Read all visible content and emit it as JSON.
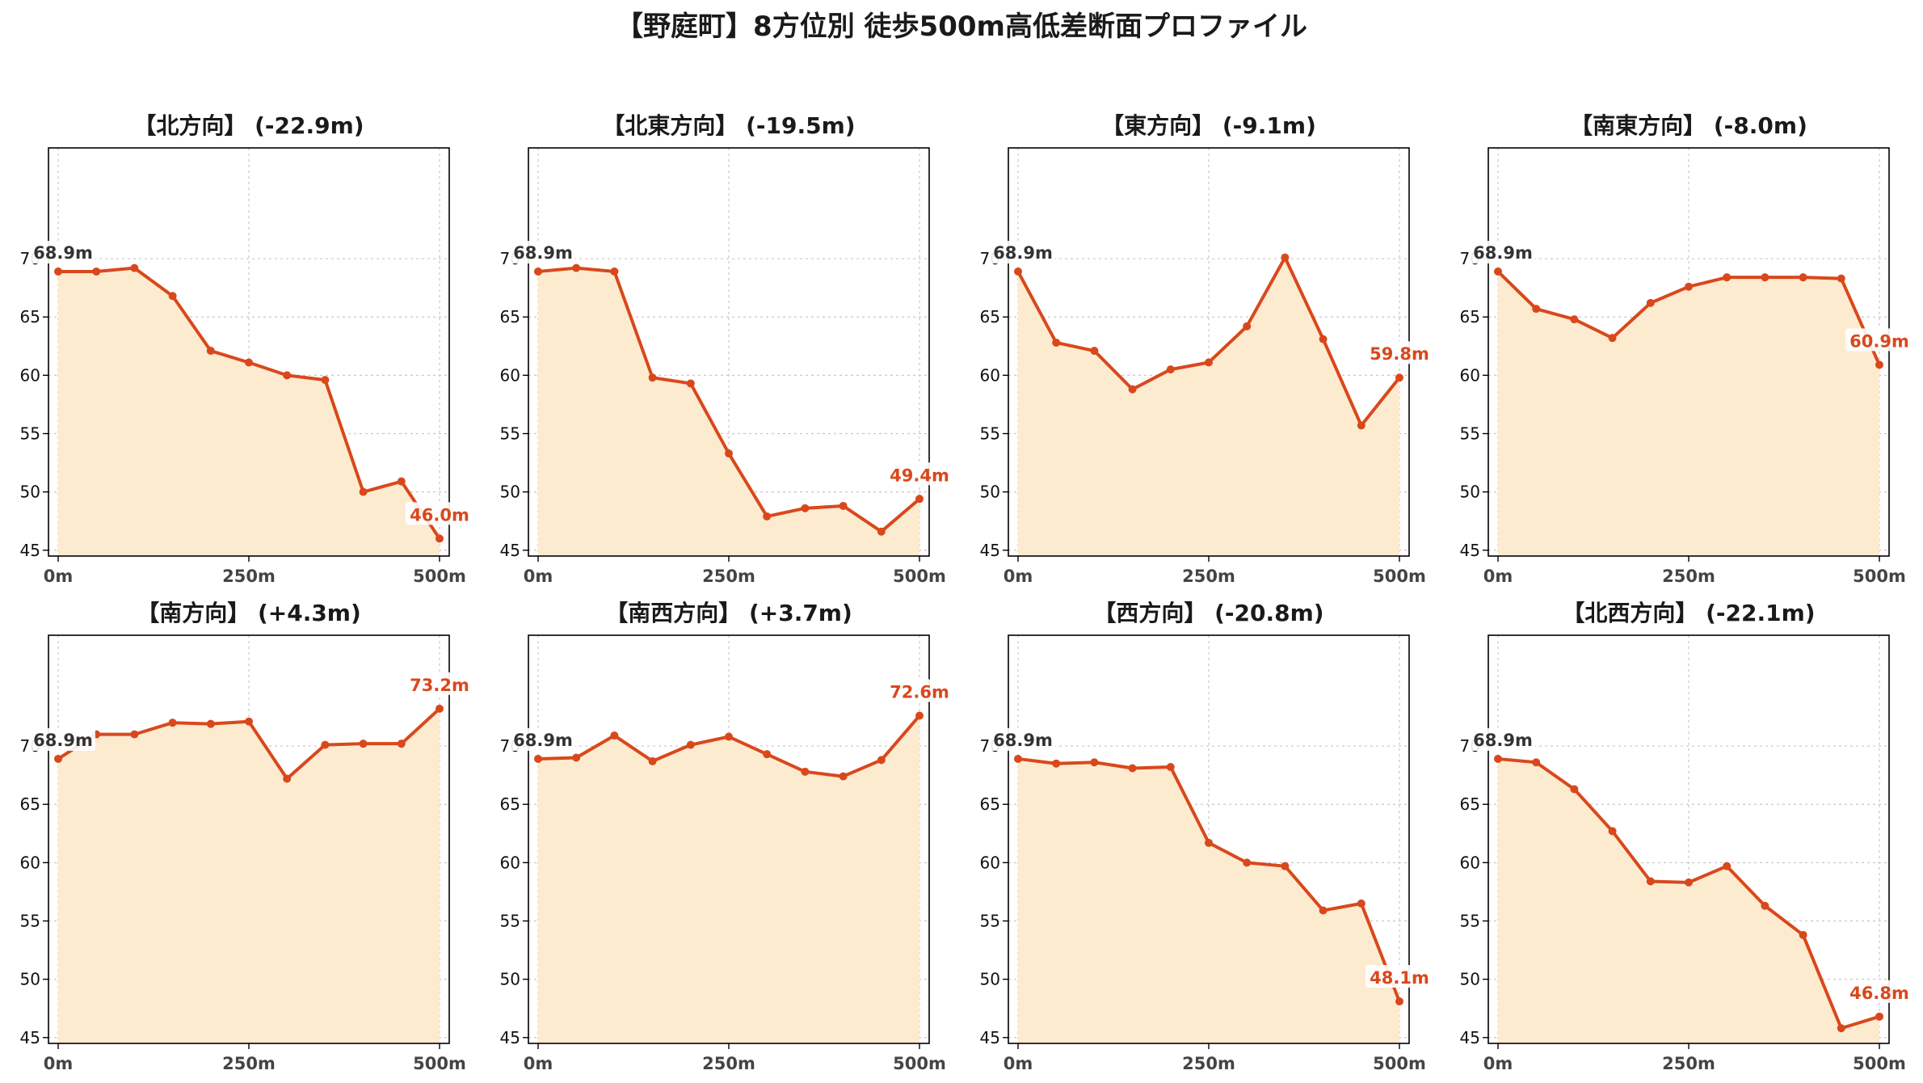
{
  "figure": {
    "title": "【野庭町】8方位別 徒歩500m高低差断面プロファイル"
  },
  "colors": {
    "line": "#d9481c",
    "fill": "#fdebd0",
    "grid": "#c8c8c8",
    "start_label": "#333333",
    "end_label": "#d9481c"
  },
  "chart_data": [
    {
      "type": "area",
      "title": "【北方向】 (-22.9m)",
      "x": [
        0,
        50,
        100,
        150,
        200,
        250,
        300,
        350,
        400,
        450,
        500
      ],
      "values": [
        68.9,
        68.9,
        69.2,
        66.8,
        62.1,
        61.1,
        60.0,
        59.6,
        50.0,
        50.9,
        46.0
      ],
      "start_label": "68.9m",
      "end_label": "46.0m",
      "ylim": [
        44.5,
        79.5
      ],
      "yticks": [
        "45",
        "50",
        "55",
        "60",
        "65",
        "70"
      ],
      "xticks": [
        "0m",
        "250m",
        "500m"
      ],
      "grid": true
    },
    {
      "type": "area",
      "title": "【北東方向】 (-19.5m)",
      "x": [
        0,
        50,
        100,
        150,
        200,
        250,
        300,
        350,
        400,
        450,
        500
      ],
      "values": [
        68.9,
        69.2,
        68.9,
        59.8,
        59.3,
        53.3,
        47.9,
        48.6,
        48.8,
        46.6,
        49.4
      ],
      "start_label": "68.9m",
      "end_label": "49.4m",
      "ylim": [
        44.5,
        79.5
      ],
      "yticks": [
        "45",
        "50",
        "55",
        "60",
        "65",
        "70"
      ],
      "xticks": [
        "0m",
        "250m",
        "500m"
      ],
      "grid": true
    },
    {
      "type": "area",
      "title": "【東方向】 (-9.1m)",
      "x": [
        0,
        50,
        100,
        150,
        200,
        250,
        300,
        350,
        400,
        450,
        500
      ],
      "values": [
        68.9,
        62.8,
        62.1,
        58.8,
        60.5,
        61.1,
        64.2,
        70.1,
        63.1,
        55.7,
        59.8
      ],
      "start_label": "68.9m",
      "end_label": "59.8m",
      "ylim": [
        44.5,
        79.5
      ],
      "yticks": [
        "45",
        "50",
        "55",
        "60",
        "65",
        "70"
      ],
      "xticks": [
        "0m",
        "250m",
        "500m"
      ],
      "grid": true
    },
    {
      "type": "area",
      "title": "【南東方向】 (-8.0m)",
      "x": [
        0,
        50,
        100,
        150,
        200,
        250,
        300,
        350,
        400,
        450,
        500
      ],
      "values": [
        68.9,
        65.7,
        64.8,
        63.2,
        66.2,
        67.6,
        68.4,
        68.4,
        68.4,
        68.3,
        60.9
      ],
      "start_label": "68.9m",
      "end_label": "60.9m",
      "ylim": [
        44.5,
        79.5
      ],
      "yticks": [
        "45",
        "50",
        "55",
        "60",
        "65",
        "70"
      ],
      "xticks": [
        "0m",
        "250m",
        "500m"
      ],
      "grid": true
    },
    {
      "type": "area",
      "title": "【南方向】 (+4.3m)",
      "x": [
        0,
        50,
        100,
        150,
        200,
        250,
        300,
        350,
        400,
        450,
        500
      ],
      "values": [
        68.9,
        71.0,
        71.0,
        72.0,
        71.9,
        72.1,
        67.2,
        70.1,
        70.2,
        70.2,
        73.2
      ],
      "start_label": "68.9m",
      "end_label": "73.2m",
      "ylim": [
        44.5,
        79.5
      ],
      "yticks": [
        "45",
        "50",
        "55",
        "60",
        "65",
        "70"
      ],
      "xticks": [
        "0m",
        "250m",
        "500m"
      ],
      "grid": true
    },
    {
      "type": "area",
      "title": "【南西方向】 (+3.7m)",
      "x": [
        0,
        50,
        100,
        150,
        200,
        250,
        300,
        350,
        400,
        450,
        500
      ],
      "values": [
        68.9,
        69.0,
        70.9,
        68.7,
        70.1,
        70.8,
        69.3,
        67.8,
        67.4,
        68.8,
        72.6
      ],
      "start_label": "68.9m",
      "end_label": "72.6m",
      "ylim": [
        44.5,
        79.5
      ],
      "yticks": [
        "45",
        "50",
        "55",
        "60",
        "65",
        "70"
      ],
      "xticks": [
        "0m",
        "250m",
        "500m"
      ],
      "grid": true
    },
    {
      "type": "area",
      "title": "【西方向】 (-20.8m)",
      "x": [
        0,
        50,
        100,
        150,
        200,
        250,
        300,
        350,
        400,
        450,
        500
      ],
      "values": [
        68.9,
        68.5,
        68.6,
        68.1,
        68.2,
        61.7,
        60.0,
        59.7,
        55.9,
        56.5,
        48.1
      ],
      "start_label": "68.9m",
      "end_label": "48.1m",
      "ylim": [
        44.5,
        79.5
      ],
      "yticks": [
        "45",
        "50",
        "55",
        "60",
        "65",
        "70"
      ],
      "xticks": [
        "0m",
        "250m",
        "500m"
      ],
      "grid": true
    },
    {
      "type": "area",
      "title": "【北西方向】 (-22.1m)",
      "x": [
        0,
        50,
        100,
        150,
        200,
        250,
        300,
        350,
        400,
        450,
        500
      ],
      "values": [
        68.9,
        68.6,
        66.3,
        62.7,
        58.4,
        58.3,
        59.7,
        56.3,
        53.8,
        45.8,
        46.8
      ],
      "start_label": "68.9m",
      "end_label": "46.8m",
      "ylim": [
        44.5,
        79.5
      ],
      "yticks": [
        "45",
        "50",
        "55",
        "60",
        "65",
        "70"
      ],
      "xticks": [
        "0m",
        "250m",
        "500m"
      ],
      "grid": true
    }
  ]
}
